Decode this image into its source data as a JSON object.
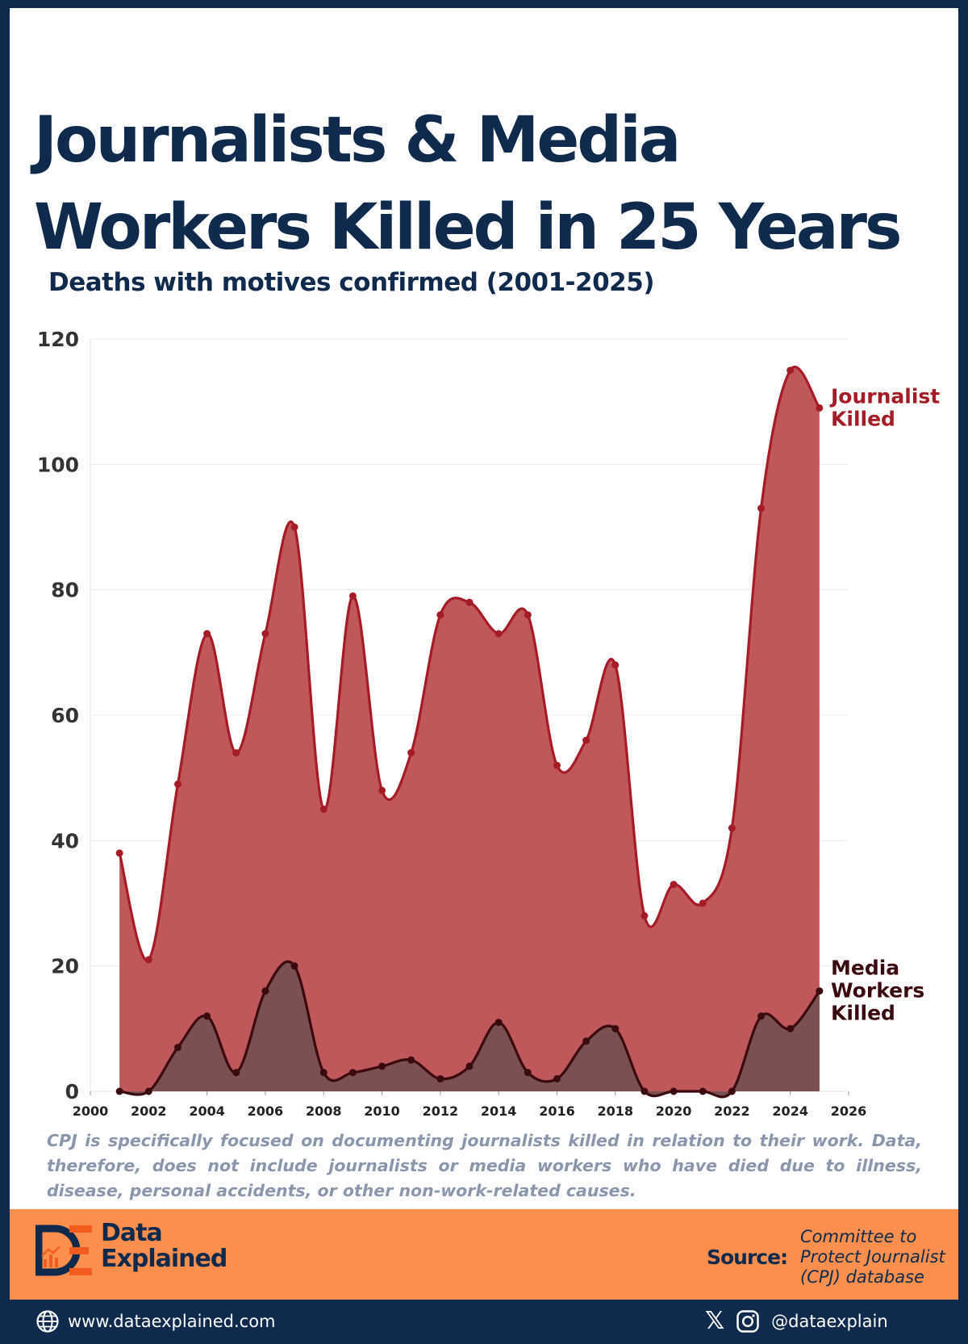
{
  "header": {
    "title": "Journalists & Media Workers Killed in 25 Years",
    "subtitle": "Deaths with motives confirmed (2001-2025)"
  },
  "chart_data": {
    "type": "area",
    "x": [
      2001,
      2002,
      2003,
      2004,
      2005,
      2006,
      2007,
      2008,
      2009,
      2010,
      2011,
      2012,
      2013,
      2014,
      2015,
      2016,
      2017,
      2018,
      2019,
      2020,
      2021,
      2022,
      2023,
      2024,
      2025
    ],
    "series": [
      {
        "name": "Journalist Killed",
        "label_lines": [
          "Journalist",
          "Killed"
        ],
        "color": "#a61c26",
        "fill": "#c0575b",
        "values": [
          38,
          21,
          49,
          73,
          54,
          73,
          90,
          45,
          79,
          48,
          54,
          76,
          78,
          73,
          76,
          52,
          56,
          68,
          28,
          33,
          30,
          42,
          93,
          115,
          109
        ]
      },
      {
        "name": "Media Workers Killed",
        "label_lines": [
          "Media",
          "Workers",
          "Killed"
        ],
        "color": "#3a0a0f",
        "fill": "#7a5050",
        "values": [
          0,
          0,
          7,
          12,
          3,
          16,
          20,
          3,
          3,
          4,
          5,
          2,
          4,
          11,
          3,
          2,
          8,
          10,
          0,
          0,
          0,
          0,
          12,
          10,
          16
        ]
      }
    ],
    "xlim": [
      2000,
      2026
    ],
    "ylim": [
      0,
      120
    ],
    "xticks": [
      2000,
      2002,
      2004,
      2006,
      2008,
      2010,
      2012,
      2014,
      2016,
      2018,
      2020,
      2022,
      2024,
      2026
    ],
    "yticks": [
      0,
      20,
      40,
      60,
      80,
      100,
      120
    ],
    "grid": "horizontal",
    "legend": "inline labels at line ends (right)"
  },
  "note": "CPJ is specifically focused on documenting journalists killed in relation to their work. Data, therefore, does not include journalists or media workers who have died due to illness, disease, personal accidents, or other non-work-related causes.",
  "branding": {
    "logo_letters": "DE",
    "name_line1": "Data",
    "name_line2": "Explained",
    "source_label": "Source:",
    "source_lines": [
      "Committee to",
      "Protect Journalist",
      "(CPJ) database"
    ]
  },
  "footer": {
    "website": "www.dataexplained.com",
    "handle": "@dataexplain",
    "icons": [
      "globe-icon",
      "x-icon",
      "instagram-icon"
    ]
  },
  "colors": {
    "navy": "#0f2a4d",
    "orange": "#fc8f4e",
    "journalist_line": "#a61c26",
    "media_line": "#3a0a0f"
  }
}
